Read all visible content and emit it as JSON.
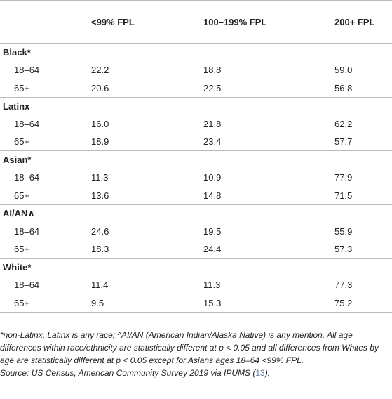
{
  "header": {
    "col0": "",
    "col1": "<99% FPL",
    "col2": "100–199% FPL",
    "col3": "200+ FPL"
  },
  "groups": [
    {
      "label": "Black*",
      "rows": [
        {
          "age": "18–64",
          "v1": "22.2",
          "v2": "18.8",
          "v3": "59.0"
        },
        {
          "age": "65+",
          "v1": "20.6",
          "v2": "22.5",
          "v3": "56.8"
        }
      ]
    },
    {
      "label": "Latinx",
      "rows": [
        {
          "age": "18–64",
          "v1": "16.0",
          "v2": "21.8",
          "v3": "62.2"
        },
        {
          "age": "65+",
          "v1": "18.9",
          "v2": "23.4",
          "v3": "57.7"
        }
      ]
    },
    {
      "label": "Asian*",
      "rows": [
        {
          "age": "18–64",
          "v1": "11.3",
          "v2": "10.9",
          "v3": "77.9"
        },
        {
          "age": "65+",
          "v1": "13.6",
          "v2": "14.8",
          "v3": "71.5"
        }
      ]
    },
    {
      "label": "AI/AN∧",
      "rows": [
        {
          "age": "18–64",
          "v1": "24.6",
          "v2": "19.5",
          "v3": "55.9"
        },
        {
          "age": "65+",
          "v1": "18.3",
          "v2": "24.4",
          "v3": "57.3"
        }
      ]
    },
    {
      "label": "White*",
      "rows": [
        {
          "age": "18–64",
          "v1": "11.4",
          "v2": "11.3",
          "v3": "77.3"
        },
        {
          "age": "65+",
          "v1": "9.5",
          "v2": "15.3",
          "v3": "75.2"
        }
      ]
    }
  ],
  "footnote": {
    "note": "*non-Latinx, Latinx is any race; ^AI/AN (American Indian/Alaska Native) is any mention. All age differences within race/ethnicity are statistically different at p < 0.05 and all differences from Whites by age are statistically different at p < 0.05 except for Asians ages 18–64 <99% FPL.",
    "source_prefix": "Source: US Census, American Community Survey 2019 via IPUMS (",
    "source_ref": "13",
    "source_suffix": ")."
  }
}
